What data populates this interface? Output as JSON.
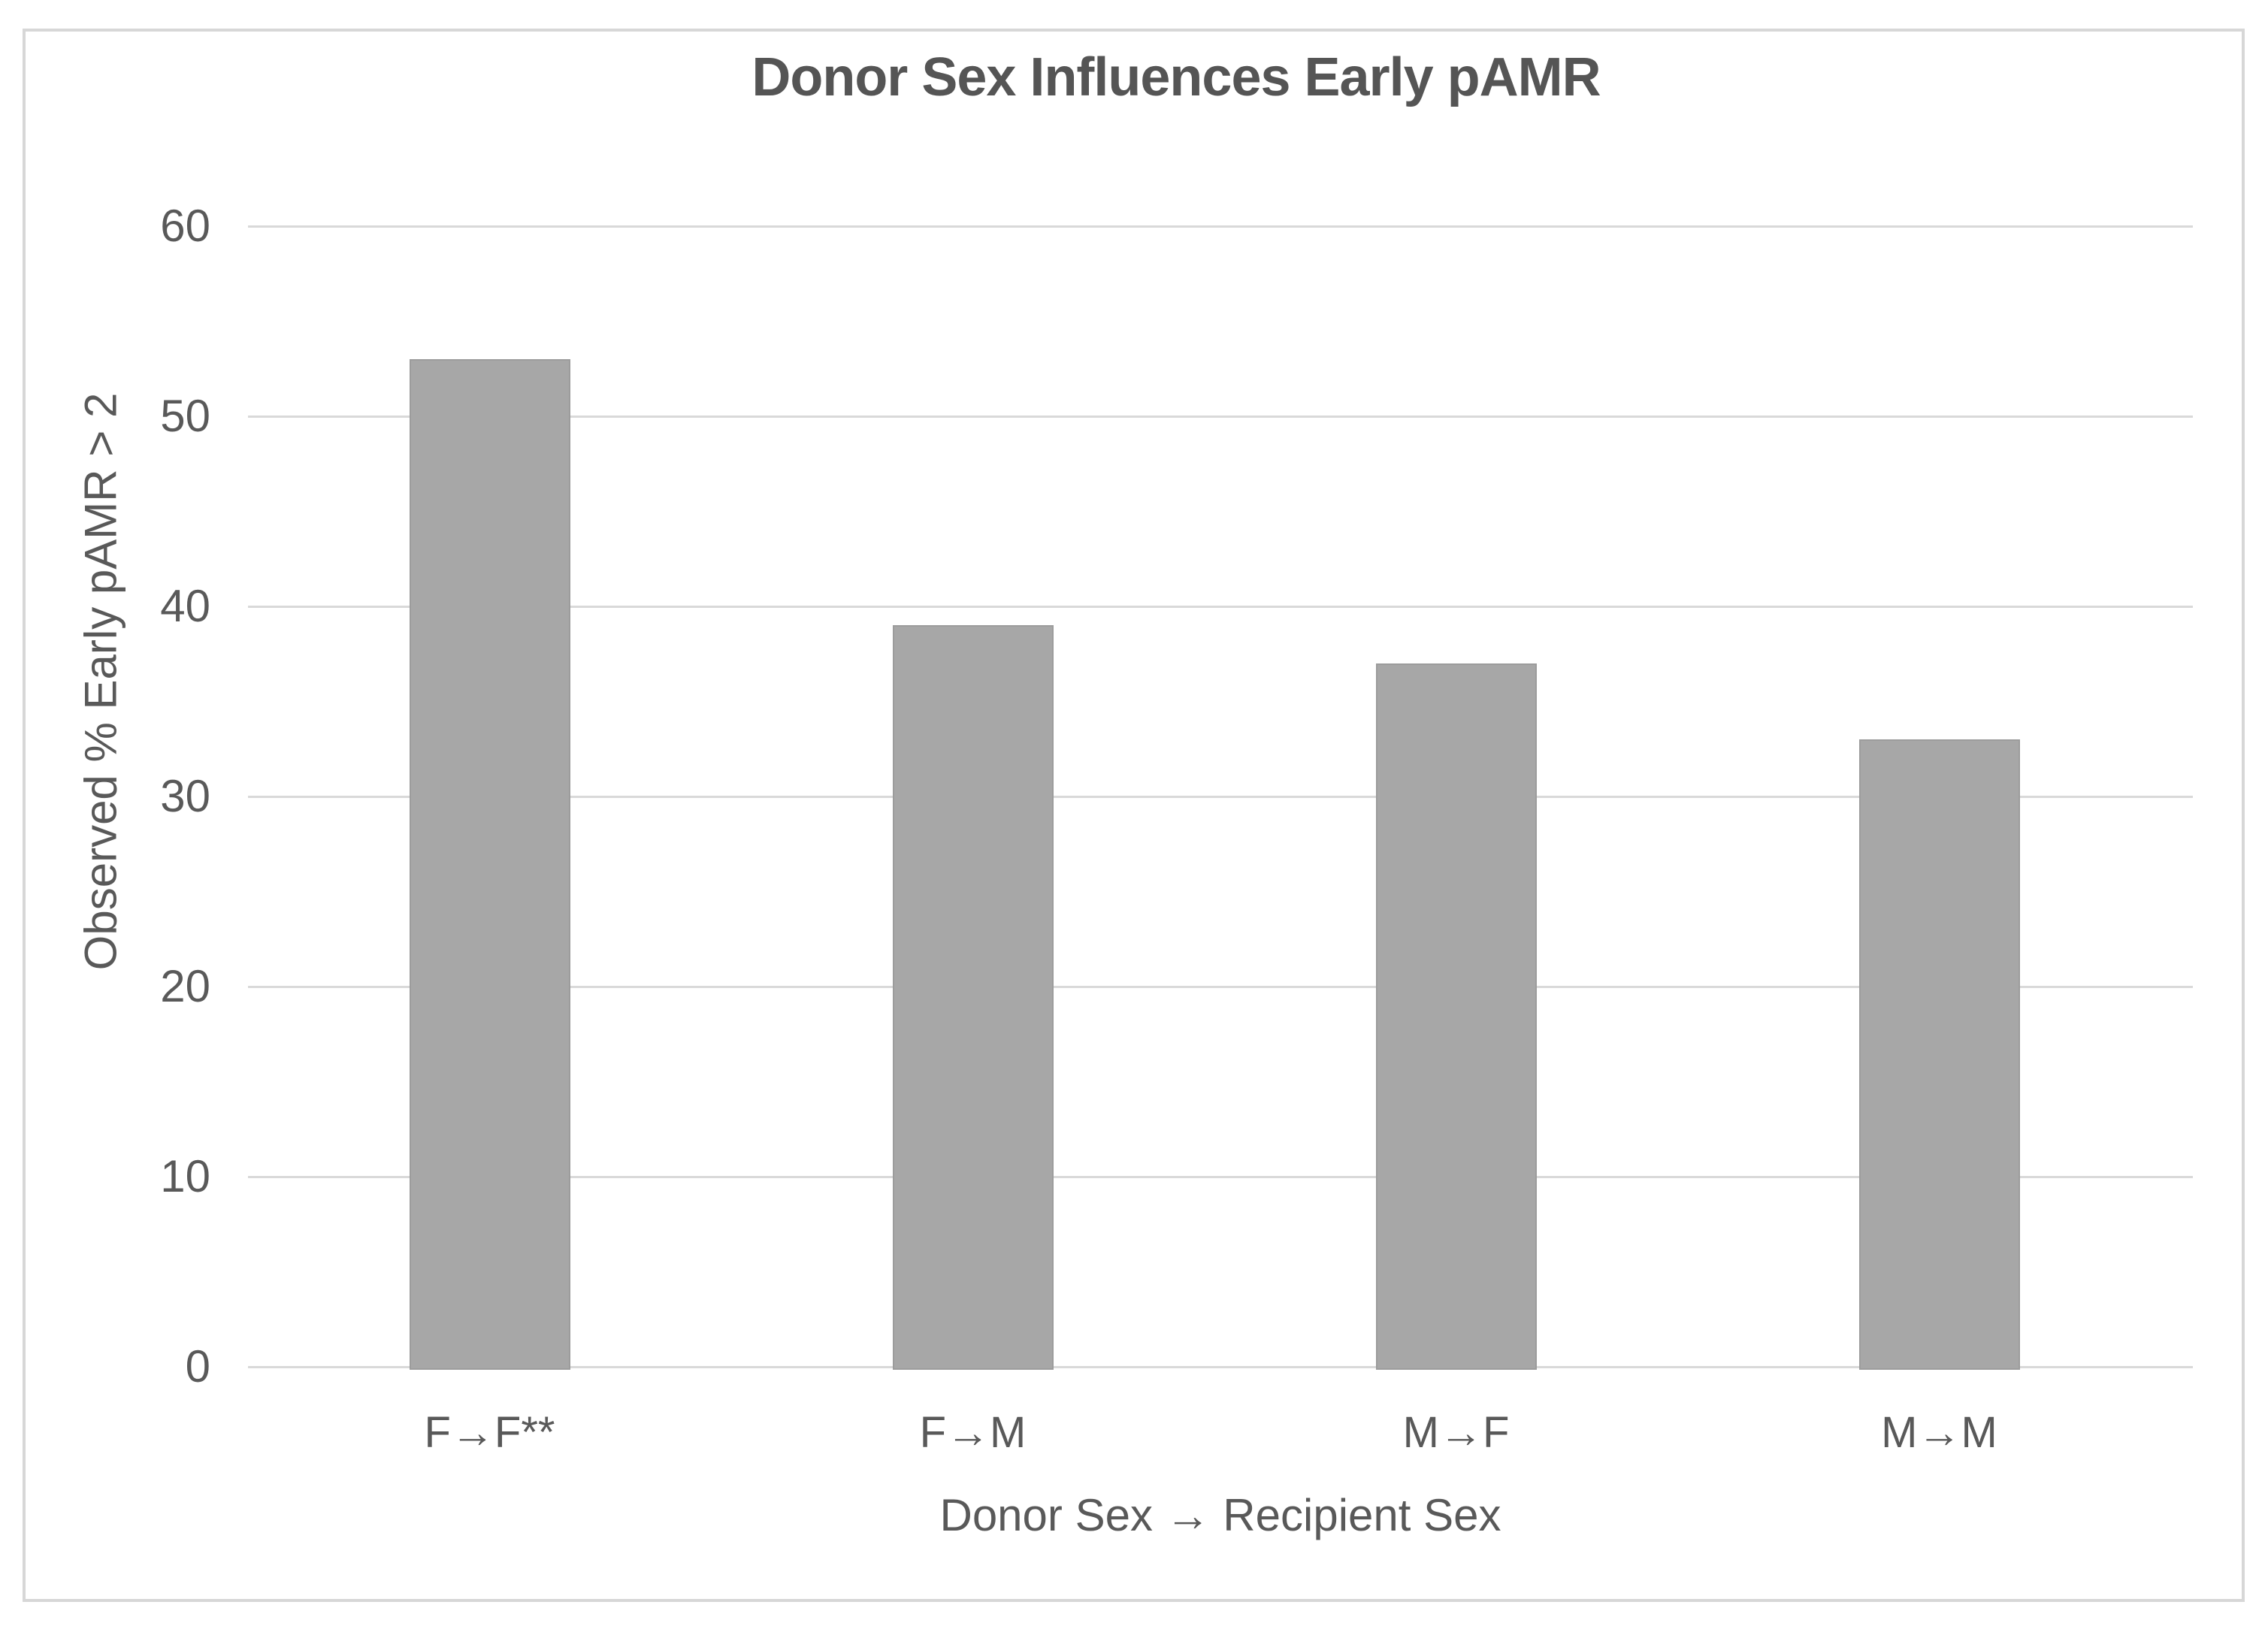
{
  "chart_data": {
    "type": "bar",
    "title": "Donor Sex Influences Early pAMR",
    "categories": [
      "F→F**",
      "F→M",
      "M→F",
      "M→M"
    ],
    "values": [
      53,
      39,
      37,
      33
    ],
    "xlabel": "Donor Sex → Recipient Sex",
    "ylabel": "Observed % Early pAMR > 2",
    "ylim": [
      0,
      60
    ],
    "yticks": [
      0,
      10,
      20,
      30,
      40,
      50,
      60
    ],
    "grid": "horizontal",
    "legend_position": "none",
    "colors": {
      "bar_fill": "#a7a7a7",
      "bar_border": "#9c9c9c",
      "gridline": "#d9d9d9",
      "text": "#595959",
      "title_text": "#555555",
      "frame_border": "#d7d7d7",
      "background": "#ffffff"
    }
  }
}
